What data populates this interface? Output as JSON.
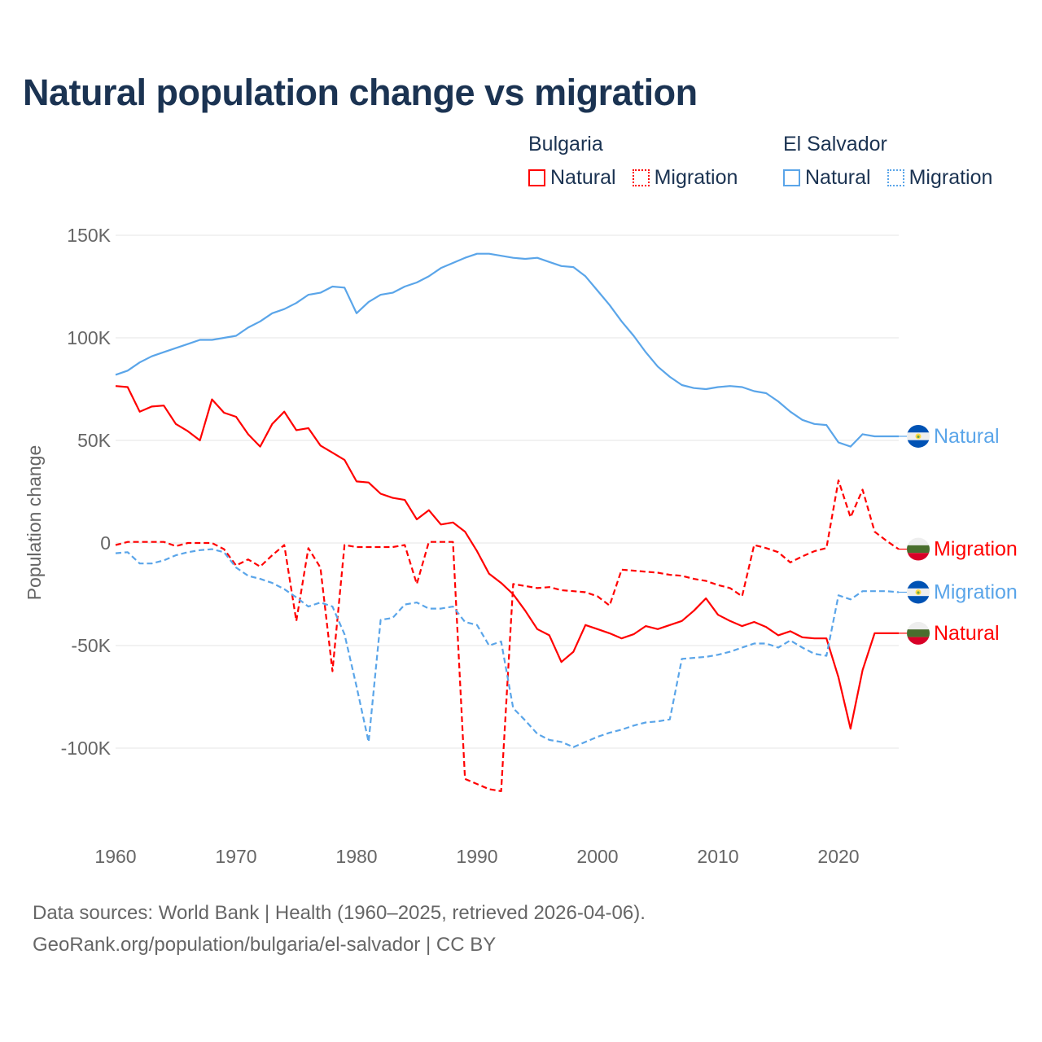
{
  "chart_data": {
    "type": "line",
    "title": "Natural population change vs migration",
    "xlabel": "",
    "ylabel": "Population change",
    "xlim": [
      1960,
      2025
    ],
    "ylim": [
      -130000,
      160000
    ],
    "grid": true,
    "x_ticks": [
      1960,
      1970,
      1980,
      1990,
      2000,
      2010,
      2020
    ],
    "y_ticks": [
      150000,
      100000,
      50000,
      0,
      -50000,
      -100000
    ],
    "y_tick_labels": [
      "150K",
      "100K",
      "50K",
      "0",
      "-50K",
      "-100K"
    ],
    "legend_placement": "top-right",
    "legend": [
      {
        "group": "Bulgaria",
        "items": [
          "Natural",
          "Migration"
        ]
      },
      {
        "group": "El Salvador",
        "items": [
          "Natural",
          "Migration"
        ]
      }
    ],
    "x_start": 1960,
    "series": [
      {
        "name": "Bulgaria Natural",
        "country": "Bulgaria",
        "label": "Natural",
        "color": "#ff0000",
        "dash": "solid",
        "flag": "bulgaria-flag",
        "values": [
          76.5,
          76,
          64,
          66.5,
          67,
          58,
          54.5,
          50,
          70,
          63.5,
          61.5,
          53,
          47,
          58,
          64,
          55,
          56,
          47.5,
          44,
          40.5,
          30,
          29.5,
          24,
          22,
          21,
          11.5,
          16,
          9,
          10,
          5.5,
          -4,
          -15,
          -19.5,
          -25,
          -33,
          -42,
          -45,
          -58,
          -53,
          -40,
          -42,
          -44,
          -46.5,
          -44.5,
          -40.5,
          -42,
          -40,
          -38,
          -33,
          -27,
          -35,
          -38,
          -40.5,
          -38.5,
          -41,
          -45,
          -43,
          -46,
          -46.5,
          -46.5,
          -65.5,
          -90.5,
          -62,
          -44,
          -44,
          -44
        ]
      },
      {
        "name": "Bulgaria Migration",
        "country": "Bulgaria",
        "label": "Migration",
        "color": "#ff0000",
        "dash": "dashed",
        "flag": "bulgaria-flag",
        "values": [
          -1,
          0.5,
          0.5,
          0.5,
          0.5,
          -1.5,
          0,
          0,
          0,
          -3,
          -11,
          -8,
          -11.5,
          -6,
          -1,
          -38,
          -2.5,
          -12,
          -62.5,
          -1,
          -2,
          -2,
          -2,
          -2,
          -1,
          -20,
          0.5,
          0.5,
          0.5,
          -115,
          -117.5,
          -120,
          -121,
          -20,
          -21,
          -22,
          -21.5,
          -23,
          -23.5,
          -24,
          -26,
          -30.5,
          -13,
          -13.5,
          -14,
          -14.5,
          -15.5,
          -16,
          -17.5,
          -18.5,
          -20.5,
          -22,
          -26,
          -1,
          -2.5,
          -4.5,
          -9.5,
          -6.5,
          -4,
          -2.5,
          30.5,
          12.5,
          26,
          5.5,
          1,
          -3
        ]
      },
      {
        "name": "El Salvador Natural",
        "country": "El Salvador",
        "label": "Natural",
        "color": "#5aa5e9",
        "dash": "solid",
        "flag": "el-salvador-flag",
        "values": [
          82,
          84,
          88,
          91,
          93,
          95,
          97,
          99,
          99,
          100,
          101,
          105,
          108,
          112,
          114,
          117,
          121,
          122,
          125,
          124.5,
          112,
          117.5,
          121,
          122,
          125,
          127,
          130,
          134,
          136.5,
          139,
          141,
          141,
          140,
          139,
          138.5,
          139,
          137,
          135,
          134.5,
          130,
          123,
          116,
          108,
          101,
          93,
          86,
          81,
          77,
          75.5,
          75,
          76,
          76.5,
          76,
          74,
          73,
          69,
          64,
          60,
          58,
          57.5,
          49,
          47,
          53,
          52,
          52,
          52
        ]
      },
      {
        "name": "El Salvador Migration",
        "country": "El Salvador",
        "label": "Migration",
        "color": "#5aa5e9",
        "dash": "dashed",
        "flag": "el-salvador-flag",
        "values": [
          -5,
          -4.5,
          -10,
          -10,
          -8.5,
          -6,
          -4.5,
          -3.5,
          -3,
          -4.5,
          -12,
          -16,
          -17.5,
          -19.5,
          -22.5,
          -26.5,
          -31,
          -29,
          -31,
          -44.5,
          -70,
          -97,
          -37.5,
          -36.5,
          -30,
          -29,
          -32,
          -32,
          -31,
          -38.5,
          -40,
          -50,
          -48,
          -80.5,
          -86.5,
          -93,
          -96,
          -97,
          -99.5,
          -97,
          -94.5,
          -92.5,
          -91,
          -89,
          -87.5,
          -87,
          -86,
          -56.5,
          -56,
          -55.5,
          -54.5,
          -53,
          -51,
          -49,
          -49,
          -51,
          -47.5,
          -51,
          -54,
          -55,
          -25.5,
          -27.5,
          -23.5,
          -23.5,
          -23.5,
          -24
        ]
      }
    ],
    "value_unit": "thousands"
  },
  "footer": {
    "line1": "Data sources: World Bank | Health (1960–2025, retrieved 2026-04-06).",
    "line2": "GeoRank.org/population/bulgaria/el-salvador | CC BY"
  }
}
